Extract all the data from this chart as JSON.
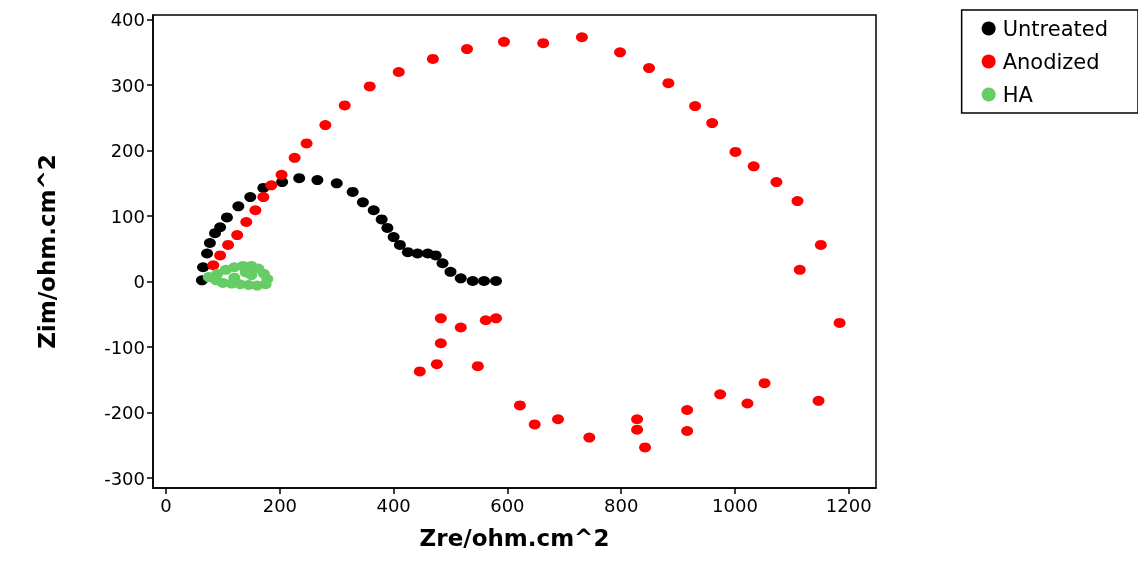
{
  "chart_data": {
    "type": "scatter",
    "xlabel": "Zre/ohm.cm^2",
    "ylabel": "Zim/ohm.cm^2",
    "xlim": [
      -23,
      1248
    ],
    "xticks": [
      0,
      200,
      400,
      600,
      800,
      1000,
      1200
    ],
    "ylim": [
      -315,
      407
    ],
    "yticks": [
      -300,
      -200,
      -100,
      0,
      100,
      200,
      300,
      400
    ],
    "grid": false,
    "legend": "top right",
    "marker": "circle",
    "series": [
      {
        "name": "Untreated",
        "color": "#000000",
        "x": [
          63,
          65,
          72,
          77,
          86,
          95,
          107,
          127,
          148,
          171,
          204,
          234,
          266,
          300,
          328,
          346,
          365,
          379,
          389,
          400,
          411,
          425,
          442,
          460,
          474,
          486,
          500,
          518,
          539,
          559,
          580
        ],
        "values": [
          2,
          22,
          43,
          59,
          74,
          83,
          98,
          115,
          129,
          143,
          152,
          158,
          155,
          150,
          137,
          121,
          109,
          95,
          82,
          68,
          56,
          45,
          43,
          43,
          40,
          28,
          15,
          5,
          1,
          1,
          1
        ]
      },
      {
        "name": "Anodized",
        "color": "#ff0000",
        "x": [
          83,
          95,
          109,
          125,
          141,
          157,
          171,
          185,
          203,
          226,
          247,
          280,
          314,
          358,
          409,
          469,
          529,
          594,
          663,
          731,
          798,
          849,
          883,
          930,
          960,
          1001,
          1033,
          1073,
          1110,
          1151,
          1114,
          1184,
          1147,
          1052,
          1022,
          974,
          916,
          916,
          842,
          828,
          828,
          744,
          689,
          648,
          622,
          580,
          562,
          548,
          518,
          483,
          483,
          476,
          446
        ],
        "values": [
          25,
          40,
          56,
          71,
          91,
          109,
          129,
          147,
          163,
          189,
          211,
          239,
          269,
          298,
          320,
          340,
          355,
          366,
          364,
          373,
          350,
          326,
          303,
          268,
          242,
          198,
          176,
          152,
          123,
          56,
          18,
          -63,
          -182,
          -155,
          -186,
          -172,
          -196,
          -228,
          -253,
          -210,
          -226,
          -238,
          -210,
          -218,
          -189,
          -56,
          -59,
          -129,
          -70,
          -56,
          -94,
          -126,
          -137
        ]
      },
      {
        "name": "HA",
        "color": "#66cc66",
        "x": [
          75,
          90,
          105,
          120,
          135,
          150,
          162,
          172,
          178,
          175,
          160,
          145,
          130,
          115,
          100,
          88,
          140,
          150,
          120
        ],
        "values": [
          7,
          12,
          18,
          22,
          24,
          24,
          20,
          12,
          4,
          -4,
          -6,
          -5,
          -4,
          -3,
          -2,
          2,
          14,
          10,
          6
        ]
      }
    ]
  }
}
